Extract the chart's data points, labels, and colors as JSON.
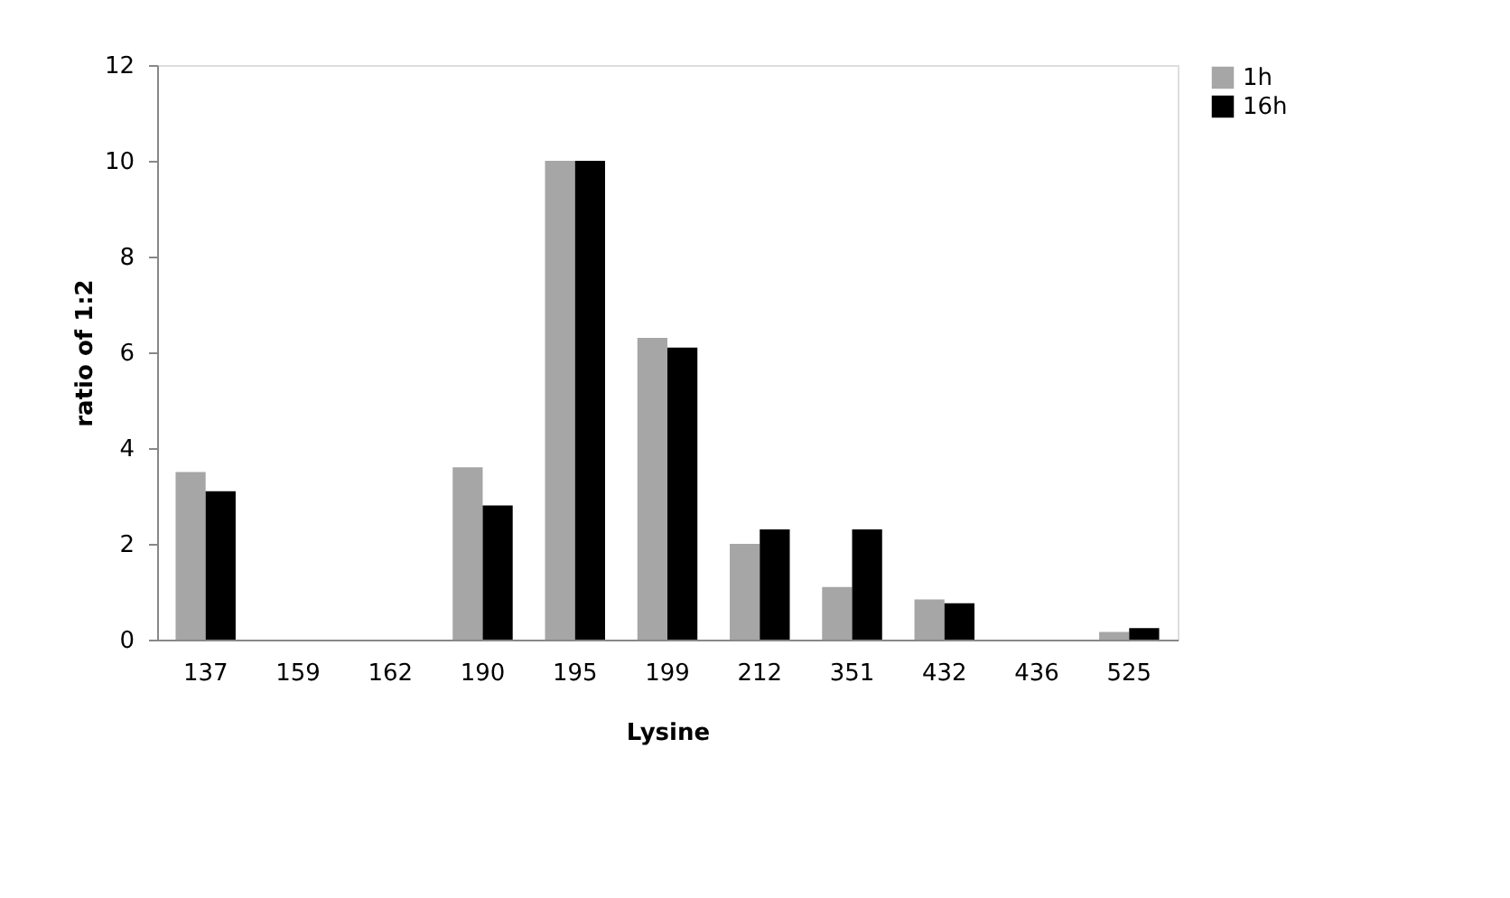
{
  "chart_data": {
    "type": "bar",
    "xlabel": "Lysine",
    "ylabel": "ratio of 1:2",
    "categories": [
      "137",
      "159",
      "162",
      "190",
      "195",
      "199",
      "212",
      "351",
      "432",
      "436",
      "525"
    ],
    "series": [
      {
        "name": "1h",
        "color": "#a6a6a6",
        "values": [
          3.5,
          null,
          null,
          3.6,
          10,
          6.3,
          2.0,
          1.1,
          0.84,
          null,
          0.16
        ]
      },
      {
        "name": "16h",
        "color": "#000000",
        "values": [
          3.1,
          null,
          null,
          2.8,
          10,
          6.1,
          2.3,
          2.3,
          0.76,
          null,
          0.24
        ]
      }
    ],
    "ylim": [
      0,
      12
    ],
    "yticks": [
      0,
      2,
      4,
      6,
      8,
      10,
      12
    ],
    "grid": false,
    "legend": "right"
  }
}
